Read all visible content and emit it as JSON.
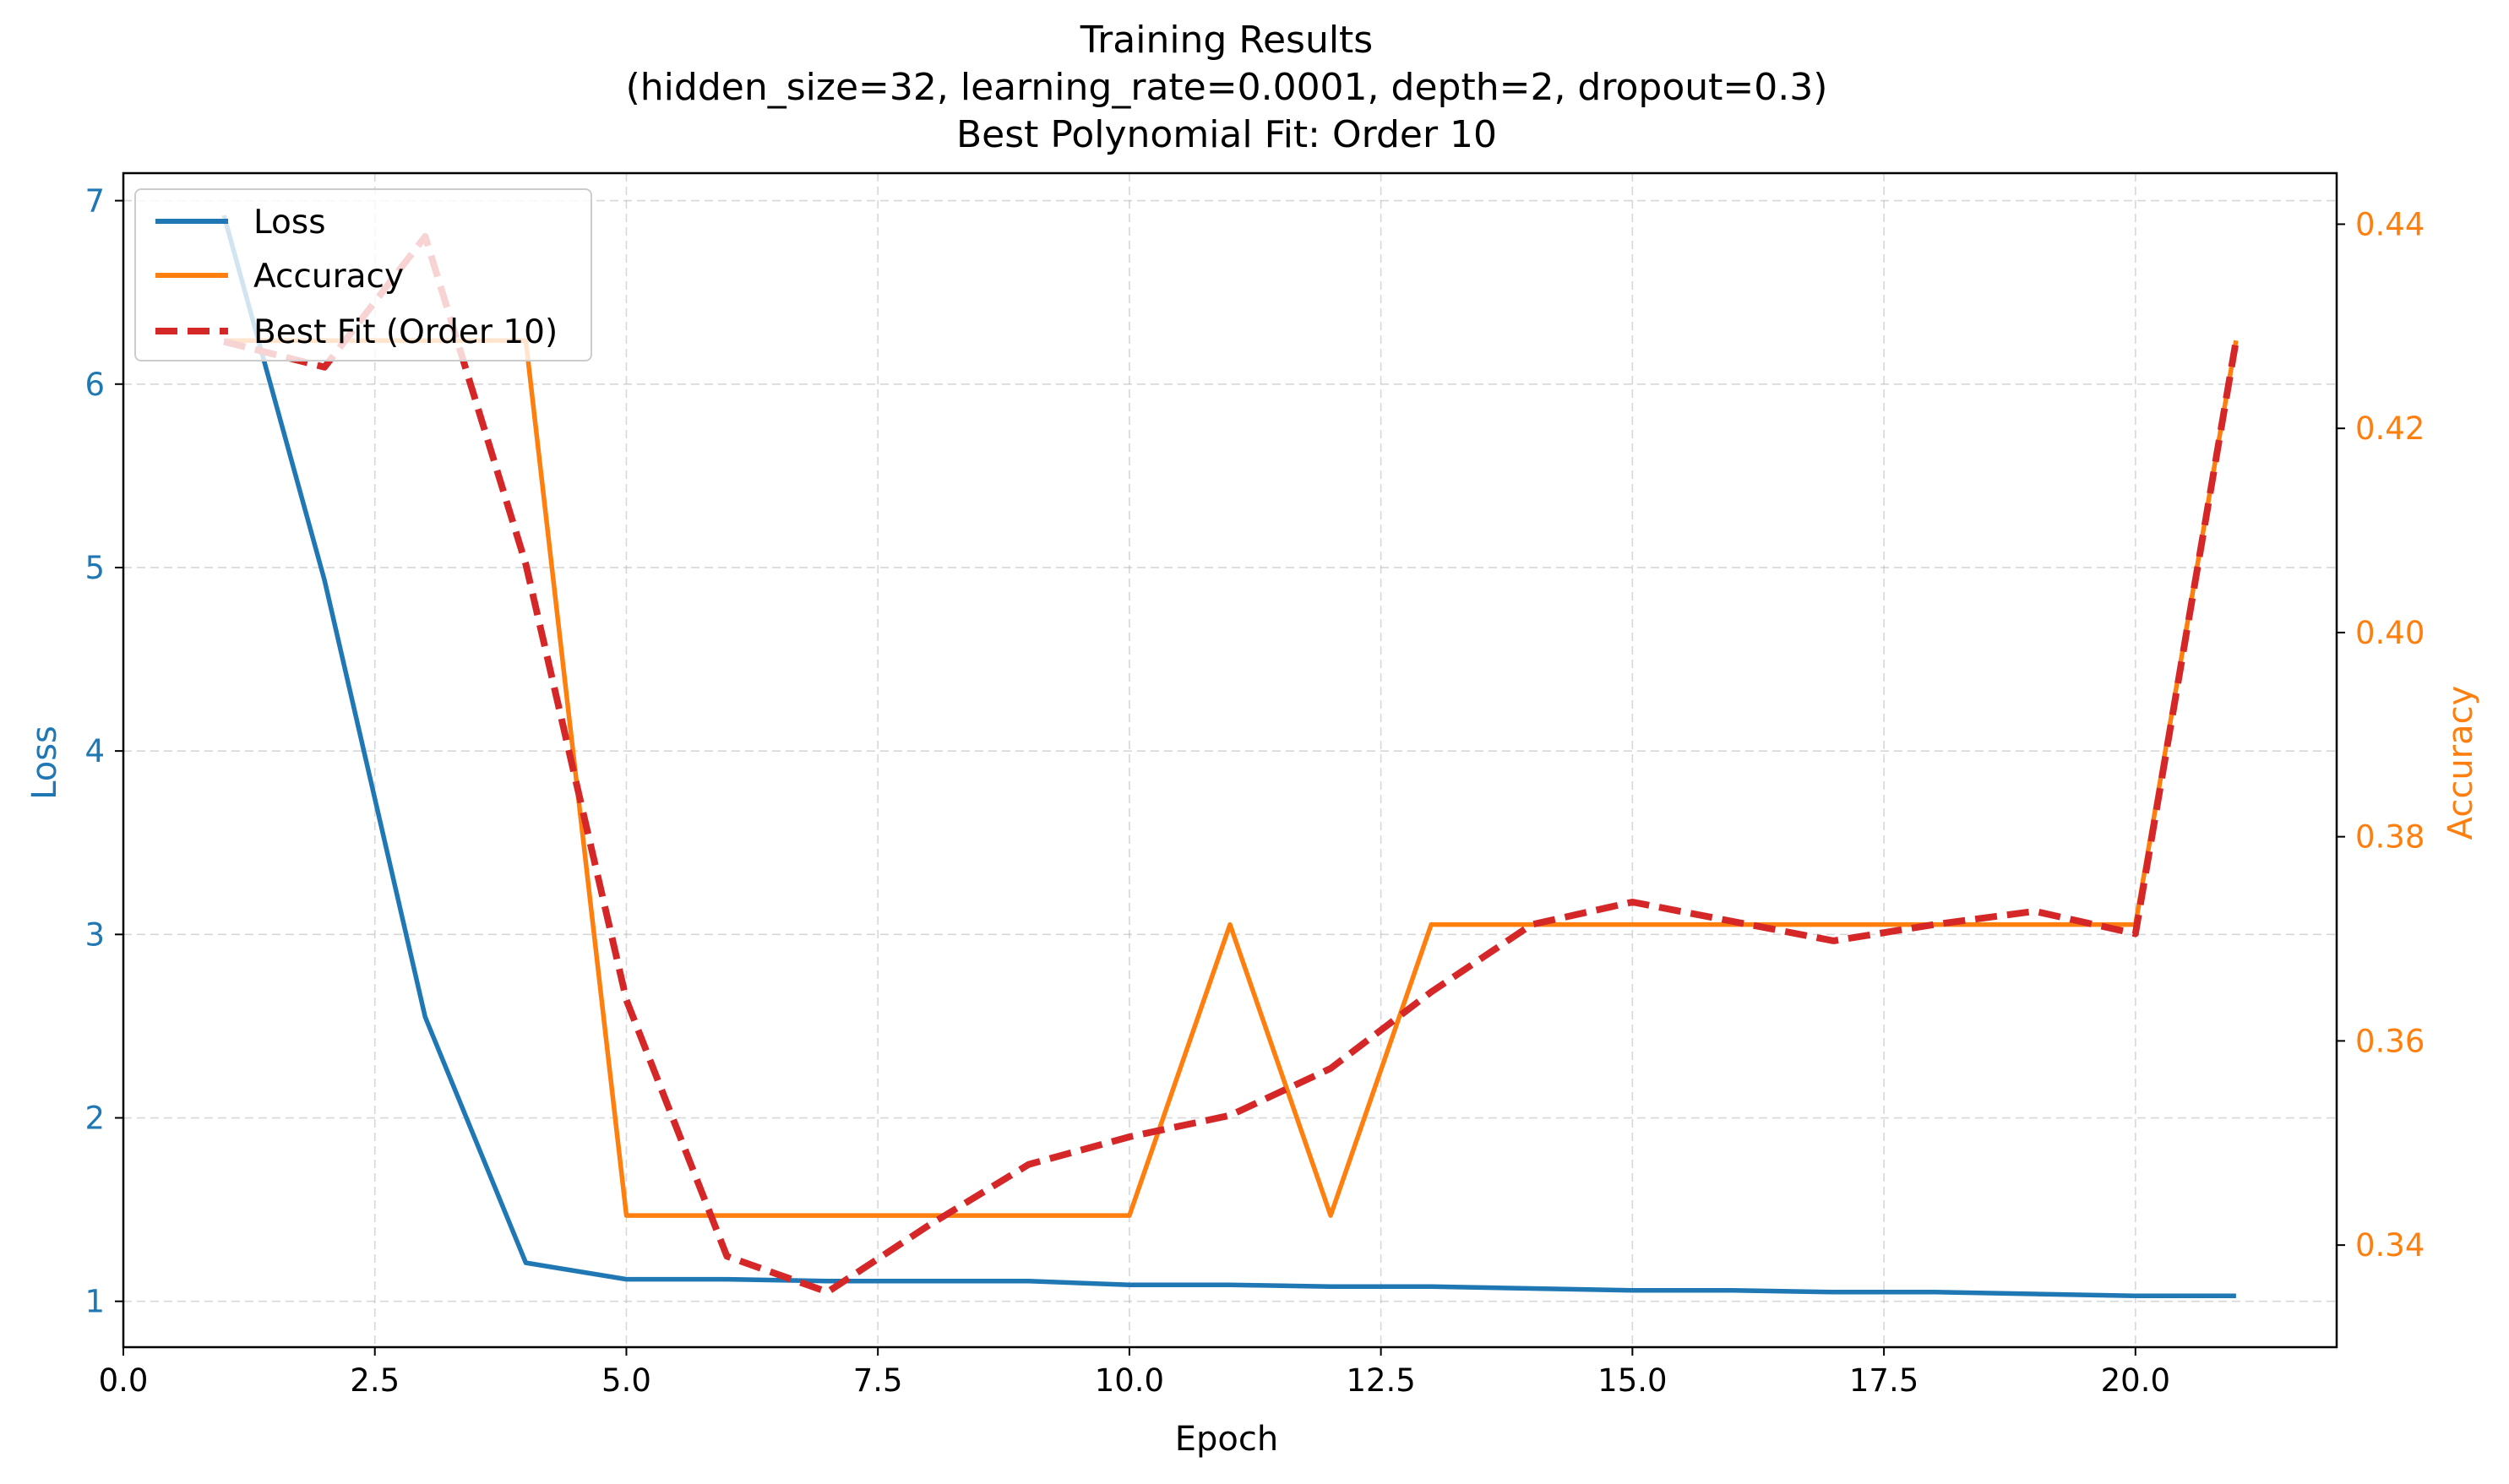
{
  "chart_data": {
    "type": "line",
    "title_lines": [
      "Training Results",
      "(hidden_size=32, learning_rate=0.0001, depth=2, dropout=0.3)",
      "Best Polynomial Fit: Order 10"
    ],
    "xlabel": "Epoch",
    "ylabel_left": "Loss",
    "ylabel_right": "Accuracy",
    "xlim": [
      0,
      22
    ],
    "ylim_left": [
      0.75,
      7.15
    ],
    "ylim_right": [
      0.33,
      0.445
    ],
    "x_ticks": [
      0.0,
      2.5,
      5.0,
      7.5,
      10.0,
      12.5,
      15.0,
      17.5,
      20.0
    ],
    "x_tick_labels": [
      "0.0",
      "2.5",
      "5.0",
      "7.5",
      "10.0",
      "12.5",
      "15.0",
      "17.5",
      "20.0"
    ],
    "y_left_ticks": [
      1,
      2,
      3,
      4,
      5,
      6,
      7
    ],
    "y_left_tick_labels": [
      "1",
      "2",
      "3",
      "4",
      "5",
      "6",
      "7"
    ],
    "y_right_ticks": [
      0.34,
      0.36,
      0.38,
      0.4,
      0.42,
      0.44
    ],
    "y_right_tick_labels": [
      "0.34",
      "0.36",
      "0.38",
      "0.40",
      "0.42",
      "0.44"
    ],
    "grid": true,
    "legend_position": "top-left",
    "colors": {
      "loss": "#1f77b4",
      "accuracy": "#ff7f0e",
      "fit": "#d62728"
    },
    "series": [
      {
        "name": "Loss",
        "axis": "left",
        "style": "solid",
        "x": [
          1,
          2,
          3,
          4,
          5,
          6,
          7,
          8,
          9,
          10,
          11,
          12,
          13,
          14,
          15,
          16,
          17,
          18,
          19,
          20,
          21
        ],
        "values": [
          6.92,
          4.93,
          2.55,
          1.21,
          1.12,
          1.12,
          1.11,
          1.11,
          1.11,
          1.09,
          1.09,
          1.08,
          1.08,
          1.07,
          1.06,
          1.06,
          1.05,
          1.05,
          1.04,
          1.03,
          1.03
        ]
      },
      {
        "name": "Accuracy",
        "axis": "right",
        "style": "solid",
        "x": [
          1,
          2,
          3,
          4,
          5,
          6,
          7,
          8,
          9,
          10,
          11,
          12,
          13,
          14,
          15,
          16,
          17,
          18,
          19,
          20,
          21
        ],
        "values": [
          0.4286,
          0.4286,
          0.4286,
          0.4286,
          0.3429,
          0.3429,
          0.3429,
          0.3429,
          0.3429,
          0.3429,
          0.3714,
          0.3429,
          0.3714,
          0.3714,
          0.3714,
          0.3714,
          0.3714,
          0.3714,
          0.3714,
          0.3714,
          0.4286
        ]
      },
      {
        "name": "Best Fit (Order 10)",
        "axis": "right",
        "style": "dashed",
        "x": [
          1,
          2,
          3,
          4,
          5,
          6,
          7,
          8,
          9,
          10,
          11,
          12,
          13,
          14,
          15,
          16,
          17,
          18,
          19,
          20,
          21
        ],
        "values": [
          0.4285,
          0.426,
          0.4388,
          0.4067,
          0.364,
          0.3389,
          0.3354,
          0.3419,
          0.3479,
          0.3506,
          0.3527,
          0.3573,
          0.3648,
          0.3714,
          0.3736,
          0.3717,
          0.3698,
          0.3714,
          0.3727,
          0.3705,
          0.4286
        ]
      }
    ]
  }
}
